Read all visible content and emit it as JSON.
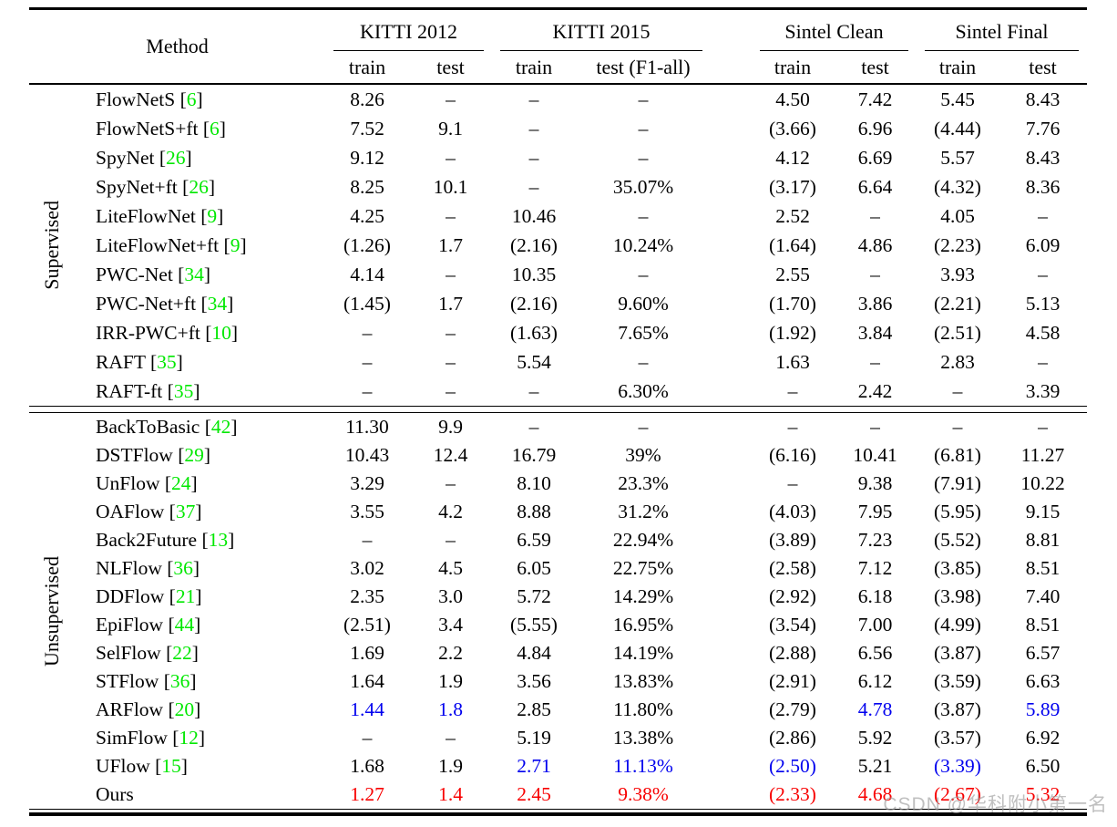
{
  "watermark": {
    "text": "CSDN @华科附小第一名"
  },
  "colors": {
    "citation": "#00e800",
    "blue": "#0000ee",
    "red": "#f80000",
    "text": "#000000",
    "watermark": "#9b9b9b"
  },
  "table": {
    "header": {
      "method_label": "Method",
      "groups": [
        {
          "label": "KITTI 2012",
          "cols": [
            "train",
            "test"
          ]
        },
        {
          "label": "KITTI 2015",
          "cols": [
            "train",
            "test (F1-all)"
          ]
        },
        {
          "label": "Sintel Clean",
          "cols": [
            "train",
            "test"
          ]
        },
        {
          "label": "Sintel Final",
          "cols": [
            "train",
            "test"
          ]
        }
      ]
    },
    "sections": [
      {
        "label": "Supervised",
        "rows": [
          {
            "method": "FlowNetS",
            "ref": "6",
            "values": [
              "8.26",
              "–",
              "–",
              "–",
              "4.50",
              "7.42",
              "5.45",
              "8.43"
            ]
          },
          {
            "method": "FlowNetS+ft",
            "ref": "6",
            "values": [
              "7.52",
              "9.1",
              "–",
              "–",
              "(3.66)",
              "6.96",
              "(4.44)",
              "7.76"
            ]
          },
          {
            "method": "SpyNet",
            "ref": "26",
            "values": [
              "9.12",
              "–",
              "–",
              "–",
              "4.12",
              "6.69",
              "5.57",
              "8.43"
            ]
          },
          {
            "method": "SpyNet+ft",
            "ref": "26",
            "values": [
              "8.25",
              "10.1",
              "–",
              "35.07%",
              "(3.17)",
              "6.64",
              "(4.32)",
              "8.36"
            ]
          },
          {
            "method": "LiteFlowNet",
            "ref": "9",
            "values": [
              "4.25",
              "–",
              "10.46",
              "–",
              "2.52",
              "–",
              "4.05",
              "–"
            ]
          },
          {
            "method": "LiteFlowNet+ft",
            "ref": "9",
            "values": [
              "(1.26)",
              "1.7",
              "(2.16)",
              "10.24%",
              "(1.64)",
              "4.86",
              "(2.23)",
              "6.09"
            ]
          },
          {
            "method": "PWC-Net",
            "ref": "34",
            "values": [
              "4.14",
              "–",
              "10.35",
              "–",
              "2.55",
              "–",
              "3.93",
              "–"
            ]
          },
          {
            "method": "PWC-Net+ft",
            "ref": "34",
            "values": [
              "(1.45)",
              "1.7",
              "(2.16)",
              "9.60%",
              "(1.70)",
              "3.86",
              "(2.21)",
              "5.13"
            ]
          },
          {
            "method": "IRR-PWC+ft",
            "ref": "10",
            "values": [
              "–",
              "–",
              "(1.63)",
              "7.65%",
              "(1.92)",
              "3.84",
              "(2.51)",
              "4.58"
            ]
          },
          {
            "method": "RAFT",
            "ref": "35",
            "values": [
              "–",
              "–",
              "5.54",
              "–",
              "1.63",
              "–",
              "2.83",
              "–"
            ]
          },
          {
            "method": "RAFT-ft",
            "ref": "35",
            "values": [
              "–",
              "–",
              "–",
              "6.30%",
              "–",
              "2.42",
              "–",
              "3.39"
            ]
          }
        ]
      },
      {
        "label": "Unsupervised",
        "rows": [
          {
            "method": "BackToBasic",
            "ref": "42",
            "values": [
              "11.30",
              "9.9",
              "–",
              "–",
              "–",
              "–",
              "–",
              "–"
            ]
          },
          {
            "method": "DSTFlow",
            "ref": "29",
            "values": [
              "10.43",
              "12.4",
              "16.79",
              "39%",
              "(6.16)",
              "10.41",
              "(6.81)",
              "11.27"
            ]
          },
          {
            "method": "UnFlow",
            "ref": "24",
            "values": [
              "3.29",
              "–",
              "8.10",
              "23.3%",
              "–",
              "9.38",
              "(7.91)",
              "10.22"
            ]
          },
          {
            "method": "OAFlow",
            "ref": "37",
            "values": [
              "3.55",
              "4.2",
              "8.88",
              "31.2%",
              "(4.03)",
              "7.95",
              "(5.95)",
              "9.15"
            ]
          },
          {
            "method": "Back2Future",
            "ref": "13",
            "values": [
              "–",
              "–",
              "6.59",
              "22.94%",
              "(3.89)",
              "7.23",
              "(5.52)",
              "8.81"
            ]
          },
          {
            "method": "NLFlow",
            "ref": "36",
            "values": [
              "3.02",
              "4.5",
              "6.05",
              "22.75%",
              "(2.58)",
              "7.12",
              "(3.85)",
              "8.51"
            ]
          },
          {
            "method": "DDFlow",
            "ref": "21",
            "values": [
              "2.35",
              "3.0",
              "5.72",
              "14.29%",
              "(2.92)",
              "6.18",
              "(3.98)",
              "7.40"
            ]
          },
          {
            "method": "EpiFlow",
            "ref": "44",
            "values": [
              "(2.51)",
              "3.4",
              "(5.55)",
              "16.95%",
              "(3.54)",
              "7.00",
              "(4.99)",
              "8.51"
            ]
          },
          {
            "method": "SelFlow",
            "ref": "22",
            "values": [
              "1.69",
              "2.2",
              "4.84",
              "14.19%",
              "(2.88)",
              "6.56",
              "(3.87)",
              "6.57"
            ]
          },
          {
            "method": "STFlow",
            "ref": "36",
            "values": [
              "1.64",
              "1.9",
              "3.56",
              "13.83%",
              "(2.91)",
              "6.12",
              "(3.59)",
              "6.63"
            ]
          },
          {
            "method": "ARFlow",
            "ref": "20",
            "values": [
              "1.44",
              "1.8",
              "2.85",
              "11.80%",
              "(2.79)",
              "4.78",
              "(3.87)",
              "5.89"
            ],
            "colors": [
              "b",
              "b",
              "",
              "",
              "",
              "b",
              "",
              "b"
            ]
          },
          {
            "method": "SimFlow",
            "ref": "12",
            "values": [
              "–",
              "–",
              "5.19",
              "13.38%",
              "(2.86)",
              "5.92",
              "(3.57)",
              "6.92"
            ]
          },
          {
            "method": "UFlow",
            "ref": "15",
            "values": [
              "1.68",
              "1.9",
              "2.71",
              "11.13%",
              "(2.50)",
              "5.21",
              "(3.39)",
              "6.50"
            ],
            "colors": [
              "",
              "",
              "b",
              "b",
              "b",
              "",
              "b",
              ""
            ]
          },
          {
            "method": "Ours",
            "ref": null,
            "values": [
              "1.27",
              "1.4",
              "2.45",
              "9.38%",
              "(2.33)",
              "4.68",
              "(2.67)",
              "5.32"
            ],
            "colors": [
              "r",
              "r",
              "r",
              "r",
              "r",
              "r",
              "r",
              "r"
            ]
          }
        ]
      }
    ]
  }
}
